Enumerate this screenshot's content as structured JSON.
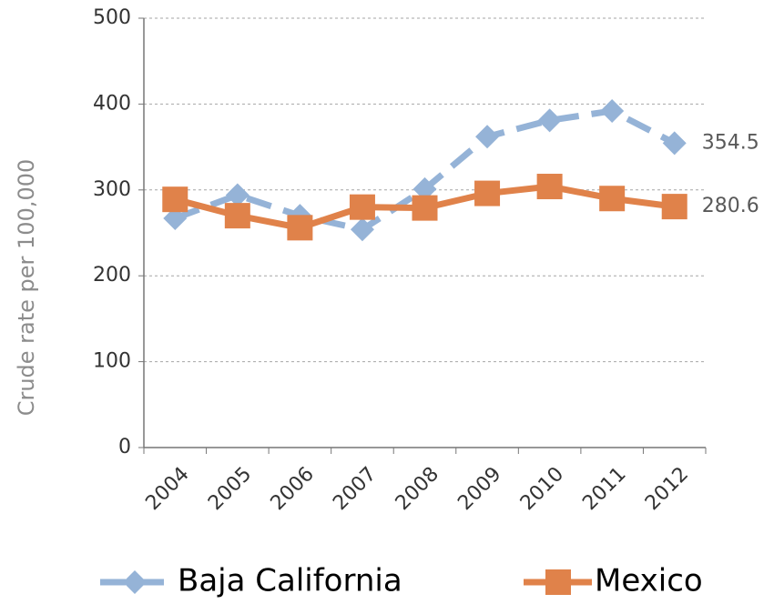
{
  "chart_data": {
    "type": "line",
    "y_label": "Crude rate per 100,000",
    "categories": [
      "2004",
      "2005",
      "2006",
      "2007",
      "2008",
      "2009",
      "2010",
      "2011",
      "2012"
    ],
    "series": [
      {
        "name": "Baja California",
        "color": "#95b3d7",
        "marker": "diamond",
        "dash": true,
        "values": [
          267,
          294,
          270,
          254,
          301,
          362,
          381,
          392,
          354.5
        ]
      },
      {
        "name": "Mexico",
        "color": "#e0824a",
        "marker": "square",
        "dash": false,
        "values": [
          289,
          270,
          256,
          280,
          279,
          296,
          304,
          290,
          280.6
        ]
      }
    ],
    "ylim": [
      0,
      500
    ],
    "yticks": [
      0,
      100,
      200,
      300,
      400,
      500
    ],
    "grid": true,
    "legend": "bottom"
  }
}
